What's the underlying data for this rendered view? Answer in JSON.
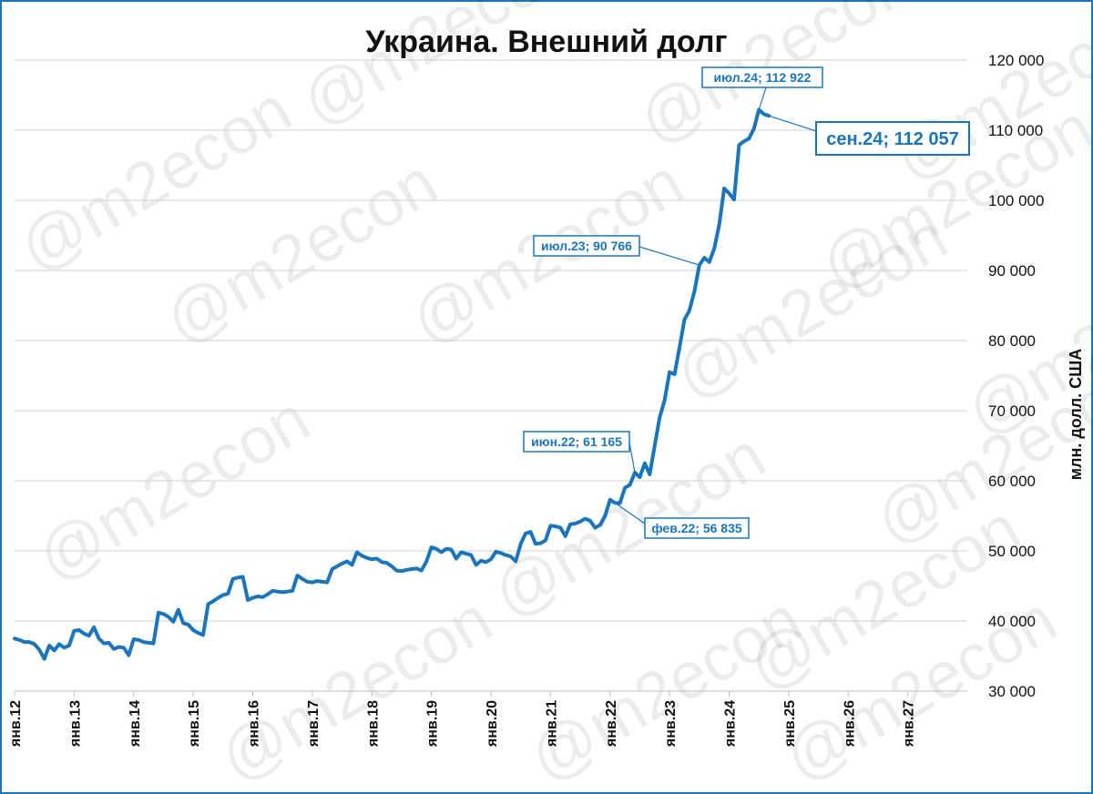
{
  "chart_data": {
    "type": "line",
    "title": "Украина. Внешний долг",
    "ylabel": "млн. долл. США",
    "xlabel": "",
    "ylim": [
      30000,
      120000
    ],
    "yticks": [
      30000,
      40000,
      50000,
      60000,
      70000,
      80000,
      90000,
      100000,
      110000,
      120000
    ],
    "ytick_labels": [
      "30 000",
      "40 000",
      "50 000",
      "60 000",
      "70 000",
      "80 000",
      "90 000",
      "100 000",
      "110 000",
      "120 000"
    ],
    "y_axis_position": "right",
    "grid": true,
    "legend": "none",
    "xticks": [
      "янв.12",
      "янв.13",
      "янв.14",
      "янв.15",
      "янв.16",
      "янв.17",
      "янв.18",
      "янв.19",
      "янв.20",
      "янв.21",
      "янв.22",
      "янв.23",
      "янв.24",
      "янв.25",
      "янв.26",
      "янв.27"
    ],
    "x_start": "2012-01",
    "x_end": "2028-01",
    "line_color": "#1b75bc",
    "series": [
      {
        "points": [
          [
            "2012-01",
            37500
          ],
          [
            "2012-02",
            37300
          ],
          [
            "2012-03",
            37000
          ],
          [
            "2012-04",
            37000
          ],
          [
            "2012-05",
            36700
          ],
          [
            "2012-06",
            35900
          ],
          [
            "2012-07",
            34600
          ],
          [
            "2012-08",
            36500
          ],
          [
            "2012-09",
            35800
          ],
          [
            "2012-10",
            36700
          ],
          [
            "2012-11",
            36200
          ],
          [
            "2012-12",
            36500
          ],
          [
            "2013-01",
            38600
          ],
          [
            "2013-02",
            38700
          ],
          [
            "2013-03",
            38200
          ],
          [
            "2013-04",
            37900
          ],
          [
            "2013-05",
            39100
          ],
          [
            "2013-06",
            37500
          ],
          [
            "2013-07",
            36800
          ],
          [
            "2013-08",
            36900
          ],
          [
            "2013-09",
            36000
          ],
          [
            "2013-10",
            36300
          ],
          [
            "2013-11",
            36200
          ],
          [
            "2013-12",
            35100
          ],
          [
            "2014-01",
            37400
          ],
          [
            "2014-02",
            37300
          ],
          [
            "2014-03",
            37000
          ],
          [
            "2014-04",
            36900
          ],
          [
            "2014-05",
            36800
          ],
          [
            "2014-06",
            41200
          ],
          [
            "2014-07",
            41000
          ],
          [
            "2014-08",
            40600
          ],
          [
            "2014-09",
            39900
          ],
          [
            "2014-10",
            41600
          ],
          [
            "2014-11",
            39700
          ],
          [
            "2014-12",
            39500
          ],
          [
            "2015-01",
            38700
          ],
          [
            "2015-02",
            38300
          ],
          [
            "2015-03",
            38000
          ],
          [
            "2015-04",
            42400
          ],
          [
            "2015-05",
            42800
          ],
          [
            "2015-06",
            43300
          ],
          [
            "2015-07",
            43700
          ],
          [
            "2015-08",
            43900
          ],
          [
            "2015-09",
            46000
          ],
          [
            "2015-10",
            46200
          ],
          [
            "2015-11",
            46300
          ],
          [
            "2015-12",
            43000
          ],
          [
            "2016-01",
            43300
          ],
          [
            "2016-02",
            43500
          ],
          [
            "2016-03",
            43400
          ],
          [
            "2016-04",
            43800
          ],
          [
            "2016-05",
            44300
          ],
          [
            "2016-06",
            44200
          ],
          [
            "2016-07",
            44100
          ],
          [
            "2016-08",
            44200
          ],
          [
            "2016-09",
            44300
          ],
          [
            "2016-10",
            46500
          ],
          [
            "2016-11",
            46000
          ],
          [
            "2016-12",
            45600
          ],
          [
            "2017-01",
            45500
          ],
          [
            "2017-02",
            45700
          ],
          [
            "2017-03",
            45600
          ],
          [
            "2017-04",
            45500
          ],
          [
            "2017-05",
            47400
          ],
          [
            "2017-06",
            47800
          ],
          [
            "2017-07",
            48200
          ],
          [
            "2017-08",
            48500
          ],
          [
            "2017-09",
            48000
          ],
          [
            "2017-10",
            49800
          ],
          [
            "2017-11",
            49300
          ],
          [
            "2017-12",
            49000
          ],
          [
            "2018-01",
            48800
          ],
          [
            "2018-02",
            48900
          ],
          [
            "2018-03",
            48400
          ],
          [
            "2018-04",
            48300
          ],
          [
            "2018-05",
            47800
          ],
          [
            "2018-06",
            47200
          ],
          [
            "2018-07",
            47100
          ],
          [
            "2018-08",
            47300
          ],
          [
            "2018-09",
            47400
          ],
          [
            "2018-10",
            47500
          ],
          [
            "2018-11",
            47200
          ],
          [
            "2018-12",
            48500
          ],
          [
            "2019-01",
            50500
          ],
          [
            "2019-02",
            50300
          ],
          [
            "2019-03",
            49800
          ],
          [
            "2019-04",
            50300
          ],
          [
            "2019-05",
            50200
          ],
          [
            "2019-06",
            48900
          ],
          [
            "2019-07",
            49800
          ],
          [
            "2019-08",
            49600
          ],
          [
            "2019-09",
            49400
          ],
          [
            "2019-10",
            48000
          ],
          [
            "2019-11",
            48600
          ],
          [
            "2019-12",
            48400
          ],
          [
            "2020-01",
            48800
          ],
          [
            "2020-02",
            49900
          ],
          [
            "2020-03",
            49700
          ],
          [
            "2020-04",
            49400
          ],
          [
            "2020-05",
            49200
          ],
          [
            "2020-06",
            48500
          ],
          [
            "2020-07",
            51000
          ],
          [
            "2020-08",
            52500
          ],
          [
            "2020-09",
            52700
          ],
          [
            "2020-10",
            51000
          ],
          [
            "2020-11",
            51100
          ],
          [
            "2020-12",
            51500
          ],
          [
            "2021-01",
            53600
          ],
          [
            "2021-02",
            53500
          ],
          [
            "2021-03",
            53300
          ],
          [
            "2021-04",
            52100
          ],
          [
            "2021-05",
            53800
          ],
          [
            "2021-06",
            53900
          ],
          [
            "2021-07",
            54200
          ],
          [
            "2021-08",
            54600
          ],
          [
            "2021-09",
            54300
          ],
          [
            "2021-10",
            53300
          ],
          [
            "2021-11",
            53700
          ],
          [
            "2021-12",
            55000
          ],
          [
            "2022-01",
            57300
          ],
          [
            "2022-02",
            56835
          ],
          [
            "2022-03",
            56800
          ],
          [
            "2022-04",
            59000
          ],
          [
            "2022-05",
            59400
          ],
          [
            "2022-06",
            61165
          ],
          [
            "2022-07",
            60500
          ],
          [
            "2022-08",
            62500
          ],
          [
            "2022-09",
            60900
          ],
          [
            "2022-10",
            65000
          ],
          [
            "2022-11",
            69000
          ],
          [
            "2022-12",
            71500
          ],
          [
            "2023-01",
            75500
          ],
          [
            "2023-02",
            75200
          ],
          [
            "2023-03",
            79000
          ],
          [
            "2023-04",
            83000
          ],
          [
            "2023-05",
            84300
          ],
          [
            "2023-06",
            87000
          ],
          [
            "2023-07",
            90766
          ],
          [
            "2023-08",
            91800
          ],
          [
            "2023-09",
            91200
          ],
          [
            "2023-10",
            93100
          ],
          [
            "2023-11",
            96500
          ],
          [
            "2023-12",
            101700
          ],
          [
            "2024-01",
            101000
          ],
          [
            "2024-02",
            100100
          ],
          [
            "2024-03",
            107900
          ],
          [
            "2024-04",
            108400
          ],
          [
            "2024-05",
            108800
          ],
          [
            "2024-06",
            110200
          ],
          [
            "2024-07",
            112922
          ],
          [
            "2024-08",
            112300
          ],
          [
            "2024-09",
            112057
          ]
        ]
      }
    ],
    "annotations": [
      {
        "text": "июл.24; 112 922",
        "x": "2024-07",
        "y": 112922,
        "emphasis": false
      },
      {
        "text": "сен.24; 112 057",
        "x": "2024-09",
        "y": 112057,
        "emphasis": true
      },
      {
        "text": "июл.23; 90 766",
        "x": "2023-07",
        "y": 90766,
        "emphasis": false
      },
      {
        "text": "июн.22; 61 165",
        "x": "2022-06",
        "y": 61165,
        "emphasis": false
      },
      {
        "text": "фев.22; 56 835",
        "x": "2022-02",
        "y": 56835,
        "emphasis": false
      }
    ],
    "watermark": "@m2econ"
  }
}
